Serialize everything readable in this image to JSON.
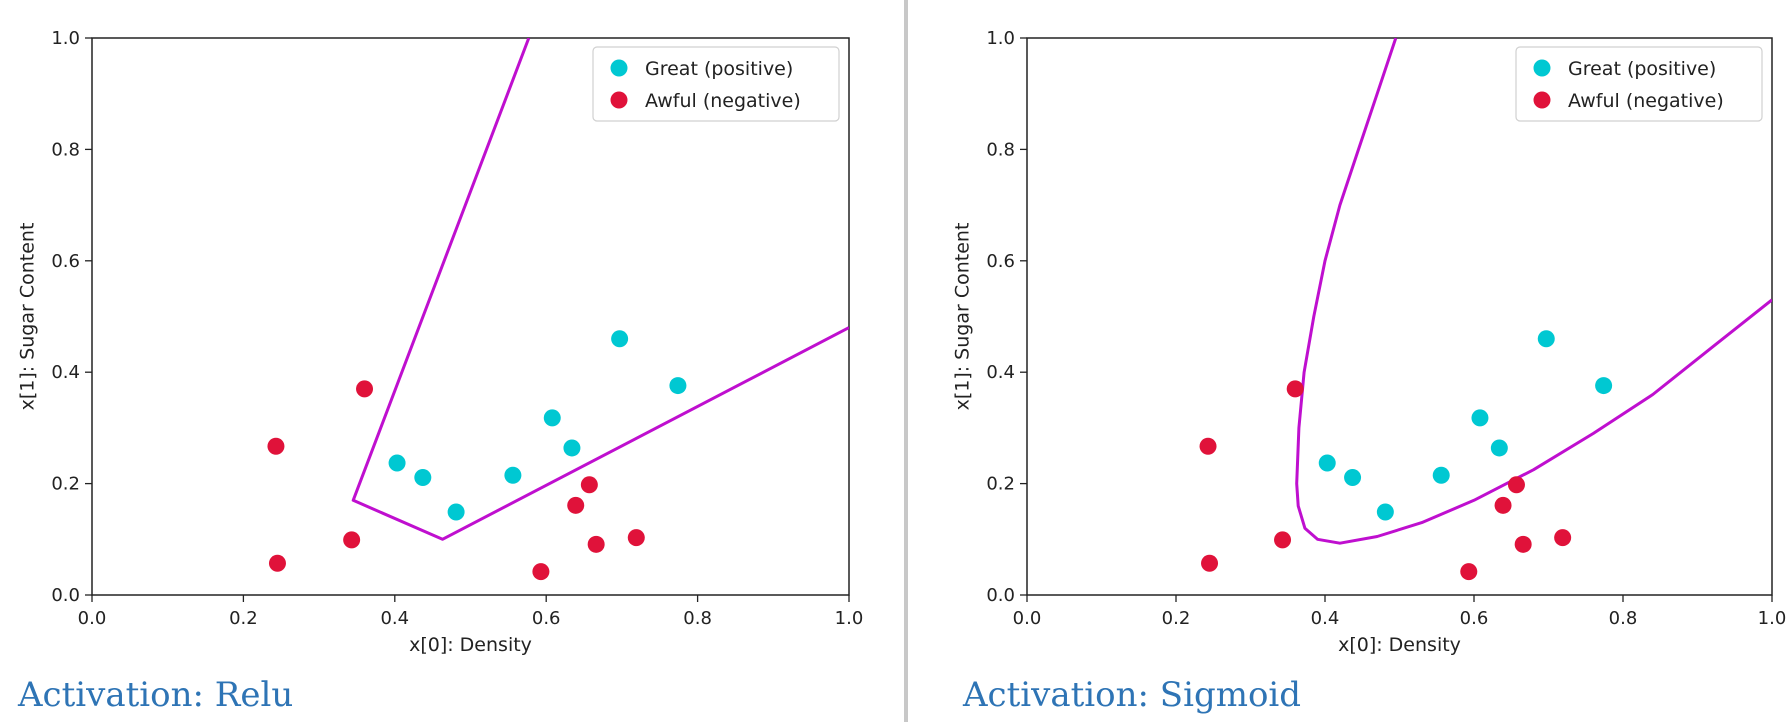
{
  "colors": {
    "positive": "#00c8d2",
    "negative": "#e0123a",
    "boundary": "#bf0fcf",
    "caption": "#2e74b5",
    "divider": "#c8c8c8"
  },
  "chart_data": [
    {
      "type": "scatter",
      "caption": "Activation: Relu",
      "xlabel": "x[0]: Density",
      "ylabel": "x[1]: Sugar Content",
      "xlim": [
        0.0,
        1.0
      ],
      "ylim": [
        0.0,
        1.0
      ],
      "xticks": [
        "0.0",
        "0.2",
        "0.4",
        "0.6",
        "0.8",
        "1.0"
      ],
      "yticks": [
        "0.0",
        "0.2",
        "0.4",
        "0.6",
        "0.8",
        "1.0"
      ],
      "grid": false,
      "legend_position": "top-right",
      "series": [
        {
          "name": "Great (positive)",
          "color_key": "positive",
          "x": [
            0.403,
            0.437,
            0.481,
            0.556,
            0.608,
            0.634,
            0.697,
            0.774
          ],
          "y": [
            0.237,
            0.211,
            0.149,
            0.215,
            0.318,
            0.264,
            0.46,
            0.376
          ]
        },
        {
          "name": "Awful (negative)",
          "color_key": "negative",
          "x": [
            0.243,
            0.245,
            0.343,
            0.36,
            0.593,
            0.639,
            0.657,
            0.666,
            0.719
          ],
          "y": [
            0.267,
            0.057,
            0.099,
            0.37,
            0.042,
            0.161,
            0.198,
            0.091,
            0.103
          ]
        }
      ],
      "boundary": {
        "color_key": "boundary",
        "x": [
          0.577,
          0.345,
          0.463,
          1.0
        ],
        "y": [
          1.0,
          0.17,
          0.1,
          0.48
        ]
      }
    },
    {
      "type": "scatter",
      "caption": "Activation: Sigmoid",
      "xlabel": "x[0]: Density",
      "ylabel": "x[1]: Sugar Content",
      "xlim": [
        0.0,
        1.0
      ],
      "ylim": [
        0.0,
        1.0
      ],
      "xticks": [
        "0.0",
        "0.2",
        "0.4",
        "0.6",
        "0.8",
        "1.0"
      ],
      "yticks": [
        "0.0",
        "0.2",
        "0.4",
        "0.6",
        "0.8",
        "1.0"
      ],
      "grid": false,
      "legend_position": "top-right",
      "series": [
        {
          "name": "Great (positive)",
          "color_key": "positive",
          "x": [
            0.403,
            0.437,
            0.481,
            0.556,
            0.608,
            0.634,
            0.697,
            0.774
          ],
          "y": [
            0.237,
            0.211,
            0.149,
            0.215,
            0.318,
            0.264,
            0.46,
            0.376
          ]
        },
        {
          "name": "Awful (negative)",
          "color_key": "negative",
          "x": [
            0.243,
            0.245,
            0.343,
            0.36,
            0.593,
            0.639,
            0.657,
            0.666,
            0.719
          ],
          "y": [
            0.267,
            0.057,
            0.099,
            0.37,
            0.042,
            0.161,
            0.198,
            0.091,
            0.103
          ]
        }
      ],
      "boundary": {
        "color_key": "boundary",
        "x": [
          0.495,
          0.47,
          0.445,
          0.42,
          0.4,
          0.385,
          0.372,
          0.365,
          0.362,
          0.364,
          0.373,
          0.39,
          0.42,
          0.47,
          0.53,
          0.6,
          0.68,
          0.76,
          0.84,
          0.92,
          1.0
        ],
        "y": [
          1.0,
          0.9,
          0.8,
          0.7,
          0.6,
          0.5,
          0.4,
          0.3,
          0.2,
          0.16,
          0.12,
          0.1,
          0.093,
          0.105,
          0.13,
          0.17,
          0.225,
          0.29,
          0.36,
          0.445,
          0.53
        ]
      }
    }
  ]
}
